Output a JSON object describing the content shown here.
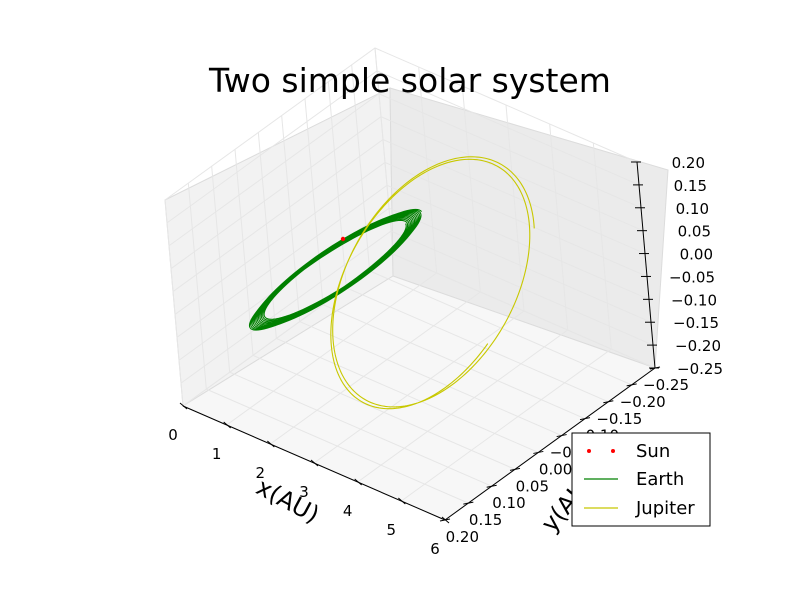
{
  "chart_data": {
    "type": "line",
    "title": "Two simple solar system",
    "xlabel": "x(AU)",
    "ylabel": "y(AU)",
    "zlabel": "",
    "xlim": [
      0,
      6
    ],
    "ylim": [
      -0.25,
      0.2
    ],
    "zlim": [
      -0.25,
      0.2
    ],
    "x_ticks": [
      "0",
      "1",
      "2",
      "3",
      "4",
      "5",
      "6"
    ],
    "y_ticks": [
      "−0.25",
      "−0.20",
      "−0.15",
      "−0.10",
      "−0.05",
      "0.00",
      "0.05",
      "0.10",
      "0.15",
      "0.20"
    ],
    "z_ticks": [
      "−0.25",
      "−0.20",
      "−0.15",
      "−0.10",
      "−0.05",
      "0.00",
      "0.05",
      "0.10",
      "0.15",
      "0.20"
    ],
    "grid": true,
    "legend_position": "lower-right",
    "series": [
      {
        "name": "Sun",
        "style": "points",
        "color": "#ff0000",
        "center": [
          1.05,
          0.13,
          0.08
        ]
      },
      {
        "name": "Earth",
        "style": "line",
        "color": "#008000",
        "x_range": [
          0.35,
          1.85
        ],
        "loops": 12
      },
      {
        "name": "Jupiter",
        "style": "line",
        "color": "#c8c800",
        "x_range": [
          0.9,
          5.9
        ],
        "loops": 2
      }
    ]
  }
}
